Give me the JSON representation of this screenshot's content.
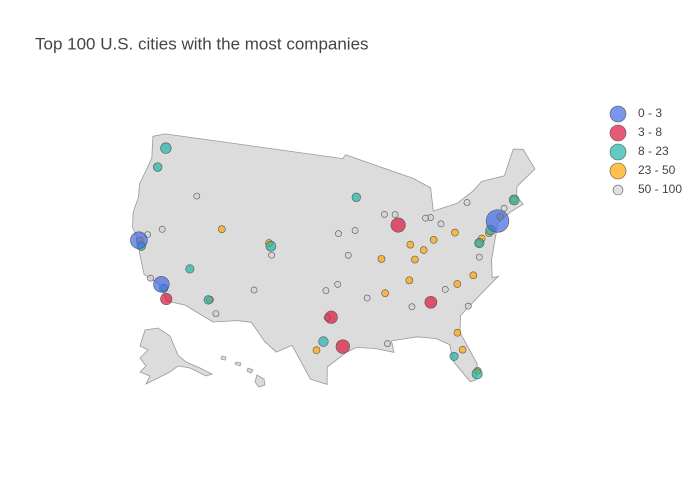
{
  "chart_data": {
    "type": "scattergeo",
    "title": "Top 100 U.S. cities with the most companies",
    "scope": "usa",
    "series": [
      {
        "name": "0 - 3",
        "color": "#4169e1",
        "lon": [
          -74.0,
          -122.4,
          -118.2
        ],
        "lat": [
          40.7,
          37.8,
          34.05
        ],
        "values": [
          120,
          60,
          50
        ]
      },
      {
        "name": "3 - 8",
        "color": "#dc143c",
        "lon": [
          -87.6,
          -95.4,
          -96.8,
          -84.4,
          -117.2
        ],
        "lat": [
          41.9,
          29.8,
          32.8,
          33.75,
          32.7
        ],
        "values": [
          40,
          35,
          28,
          25,
          22
        ]
      },
      {
        "name": "8 - 23",
        "color": "#20b2aa",
        "lon": [
          -122.3,
          -122.7,
          -105.0,
          -112.1,
          -93.3,
          -97.7,
          -80.2,
          -82.5,
          -71.06,
          -75.2,
          -77.03,
          -115.1,
          -121.9,
          -117.8
        ],
        "lat": [
          47.6,
          45.5,
          39.7,
          33.45,
          44.98,
          30.3,
          25.8,
          27.95,
          42.36,
          39.95,
          38.9,
          36.2,
          37.3,
          33.7
        ],
        "values": [
          18,
          10,
          15,
          10,
          10,
          14,
          16,
          9,
          15,
          14,
          13,
          9,
          10,
          9
        ]
      },
      {
        "name": "23 - 50",
        "color": "#ffa500",
        "lon": [
          -111.9,
          -105.3,
          -111.9,
          -98.5,
          -90.2,
          -86.2,
          -83.0,
          -80.0,
          -86.8,
          -80.8,
          -78.6,
          -81.7,
          -81.4,
          -76.6,
          -80.1,
          -71.1,
          -122.3,
          -84.5,
          -85.8,
          -90.0,
          -77.1,
          -73.5,
          -75.5
        ],
        "lat": [
          40.76,
          40.0,
          33.5,
          29.4,
          38.6,
          39.8,
          40.0,
          40.4,
          36.2,
          35.2,
          35.8,
          30.3,
          28.5,
          39.3,
          26.1,
          42.4,
          37.8,
          39.1,
          38.25,
          35.1,
          38.9,
          41.05,
          39.7
        ],
        "values": [
          5,
          5,
          5,
          5,
          5,
          5,
          5,
          5,
          5,
          5,
          5,
          5,
          5,
          5,
          5,
          5,
          5,
          5,
          5,
          5,
          5,
          5,
          5
        ]
      },
      {
        "name": "50 - 100",
        "color": "#d3d3d3",
        "lon": [
          -116.2,
          -121.5,
          -94.6,
          -95.9,
          -97.5,
          -96.0,
          -87.9,
          -83.0,
          -83.7,
          -81.7,
          -89.4,
          -106.6,
          -110.9,
          -90.1,
          -86.8,
          -93.6,
          -77.4,
          -77.6,
          -72.7,
          -82.4,
          -104.8,
          -119.7,
          -97.3,
          -92.3,
          -79.9,
          -119.8
        ],
        "lat": [
          43.6,
          38.6,
          39.1,
          41.3,
          35.5,
          36.15,
          43.0,
          42.3,
          42.3,
          41.5,
          43.1,
          35.1,
          32.2,
          29.95,
          33.5,
          41.6,
          37.5,
          43.2,
          41.8,
          34.85,
          38.8,
          34.4,
          32.75,
          34.7,
          32.8,
          39.5
        ],
        "values": [
          3,
          3,
          3,
          3,
          3,
          3,
          3,
          3,
          3,
          3,
          3,
          3,
          3,
          3,
          3,
          3,
          3,
          3,
          3,
          3,
          3,
          3,
          3,
          3,
          3,
          3
        ]
      }
    ]
  }
}
